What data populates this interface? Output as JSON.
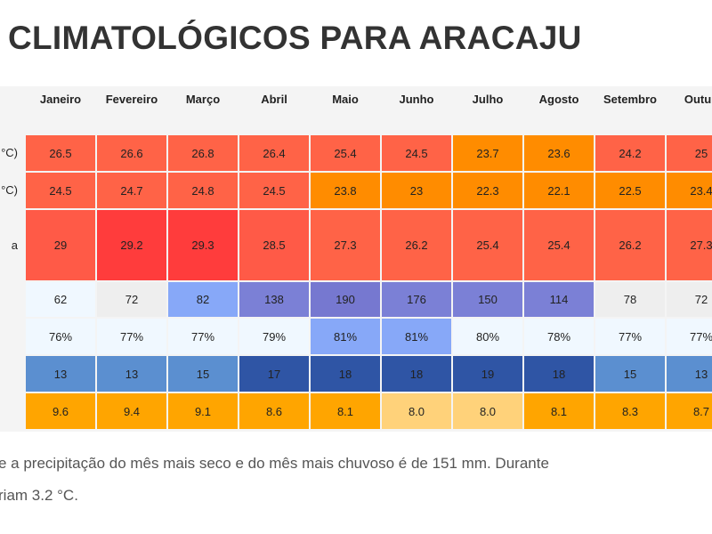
{
  "header": {
    "title": "CLIMATOLÓGICOS PARA ARACAJU"
  },
  "table": {
    "columns": [
      "Janeiro",
      "Fevereiro",
      "Março",
      "Abril",
      "Maio",
      "Junho",
      "Julho",
      "Agosto",
      "Setembro",
      "Outub"
    ],
    "rows": [
      {
        "label": "°C)",
        "cells": [
          "26.5",
          "26.6",
          "26.8",
          "26.4",
          "25.4",
          "24.5",
          "23.7",
          "23.6",
          "24.2",
          "25"
        ],
        "colors": [
          "#ff6347",
          "#ff6347",
          "#ff6347",
          "#ff6347",
          "#ff6347",
          "#ff6347",
          "#ff8c00",
          "#ff8c00",
          "#ff6347",
          "#ff6347"
        ]
      },
      {
        "label": "°C)",
        "cells": [
          "24.5",
          "24.7",
          "24.8",
          "24.5",
          "23.8",
          "23",
          "22.3",
          "22.1",
          "22.5",
          "23.4"
        ],
        "colors": [
          "#ff6347",
          "#ff6347",
          "#ff6347",
          "#ff6347",
          "#ff8c00",
          "#ff8c00",
          "#ff8c00",
          "#ff8c00",
          "#ff8c00",
          "#ff8c00"
        ]
      },
      {
        "label": "a",
        "cells": [
          "29",
          "29.2",
          "29.3",
          "28.5",
          "27.3",
          "26.2",
          "25.4",
          "25.4",
          "26.2",
          "27.3"
        ],
        "colors": [
          "#ff5a47",
          "#ff3c3c",
          "#ff3c3c",
          "#ff5a47",
          "#ff6347",
          "#ff6347",
          "#ff6347",
          "#ff6347",
          "#ff6347",
          "#ff6347"
        ]
      },
      {
        "cells": [
          "62",
          "72",
          "82",
          "138",
          "190",
          "176",
          "150",
          "114",
          "78",
          "72"
        ],
        "colors": [
          "#f0f8ff",
          "#eeeeee",
          "#87a8f8",
          "#7b80d6",
          "#7678d0",
          "#7b80d6",
          "#7b80d6",
          "#7b80d6",
          "#eeeeee",
          "#eeeeee"
        ]
      },
      {
        "cells": [
          "76%",
          "77%",
          "77%",
          "79%",
          "81%",
          "81%",
          "80%",
          "78%",
          "77%",
          "77%"
        ],
        "colors": [
          "#f0f8ff",
          "#f0f8ff",
          "#f0f8ff",
          "#f0f8ff",
          "#87a8f8",
          "#87a8f8",
          "#f0f8ff",
          "#f0f8ff",
          "#f0f8ff",
          "#f0f8ff"
        ]
      },
      {
        "cells": [
          "13",
          "13",
          "15",
          "17",
          "18",
          "18",
          "19",
          "18",
          "15",
          "13"
        ],
        "colors": [
          "#5b8fd0",
          "#5b8fd0",
          "#5b8fd0",
          "#2f55a5",
          "#2f55a5",
          "#2f55a5",
          "#2f55a5",
          "#2f55a5",
          "#5b8fd0",
          "#5b8fd0"
        ]
      },
      {
        "cells": [
          "9.6",
          "9.4",
          "9.1",
          "8.6",
          "8.1",
          "8.0",
          "8.0",
          "8.1",
          "8.3",
          "8.7"
        ],
        "colors": [
          "#ffa500",
          "#ffa500",
          "#ffa500",
          "#ffa500",
          "#ffa500",
          "#ffd27a",
          "#ffd27a",
          "#ffa500",
          "#ffa500",
          "#ffa500"
        ]
      }
    ]
  },
  "paragraph": {
    "lines": [
      "e a precipitação do mês mais seco e do mês mais chuvoso é de 151 mm. Durante",
      "riam 3.2 °C."
    ]
  }
}
